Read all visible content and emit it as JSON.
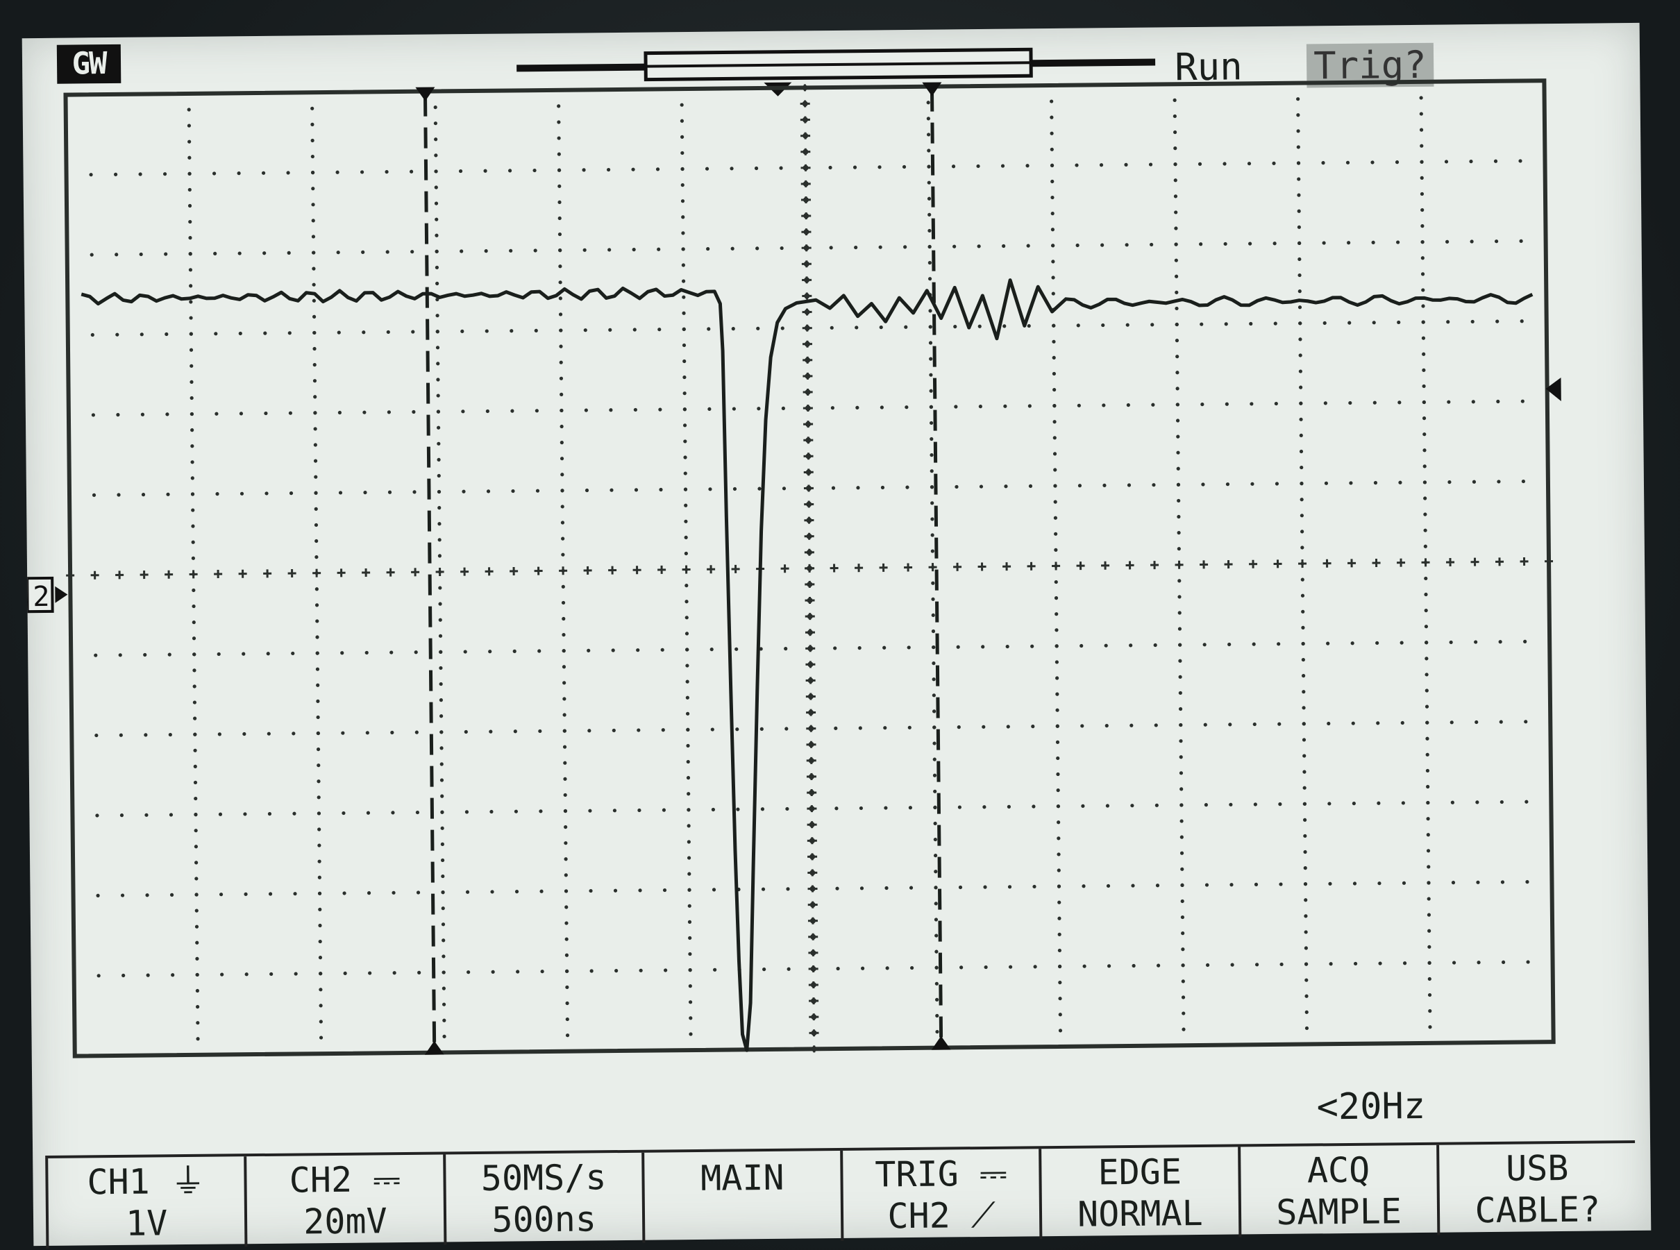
{
  "header": {
    "brand": "GW",
    "run_status": "Run",
    "trigger_status": "Trig?"
  },
  "trigger_frequency": "<20Hz",
  "channel_marker": "2",
  "softkeys": [
    {
      "line1": "CH1 ⏚",
      "line2": "1V"
    },
    {
      "line1": "CH2 ⎓",
      "line2": "20mV"
    },
    {
      "line1": "50MS/s",
      "line2": "500ns"
    },
    {
      "line1": "MAIN",
      "line2": ""
    },
    {
      "line1": "TRIG ⎓",
      "line2": "CH2 ⟋"
    },
    {
      "line1": "EDGE",
      "line2": "NORMAL"
    },
    {
      "line1": "ACQ",
      "line2": "SAMPLE"
    },
    {
      "line1": "USB",
      "line2": "CABLE?"
    }
  ],
  "colors": {
    "lcd_background": "#e9eeea",
    "trace": "#1a1f1c",
    "bezel": "#1d2325"
  }
}
